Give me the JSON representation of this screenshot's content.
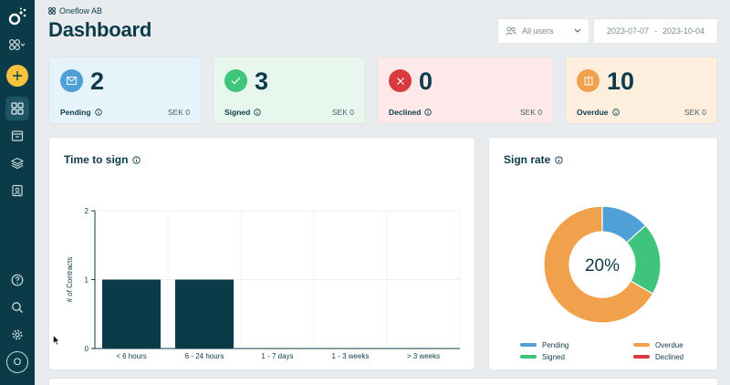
{
  "company": {
    "name": "Oneflow AB"
  },
  "page": {
    "title": "Dashboard"
  },
  "filters": {
    "users_value": "All users",
    "date_from": "2023-07-07",
    "date_sep": "-",
    "date_to": "2023-10-04"
  },
  "stats": [
    {
      "key": "pending",
      "value": "2",
      "label": "Pending",
      "amount": "SEK 0",
      "bg": "#e6f3fb",
      "icon_color": "#4ea0d6",
      "icon": "envelope-icon"
    },
    {
      "key": "signed",
      "value": "3",
      "label": "Signed",
      "amount": "SEK 0",
      "bg": "#e8f7ee",
      "icon_color": "#3fc47b",
      "icon": "check-icon"
    },
    {
      "key": "declined",
      "value": "0",
      "label": "Declined",
      "amount": "SEK 0",
      "bg": "#fde9e9",
      "icon_color": "#d93a3f",
      "icon": "x-icon"
    },
    {
      "key": "overdue",
      "value": "10",
      "label": "Overdue",
      "amount": "SEK 0",
      "bg": "#fdeedd",
      "icon_color": "#f1a04c",
      "icon": "box-icon"
    }
  ],
  "time_to_sign": {
    "title": "Time to sign"
  },
  "sign_rate": {
    "title": "Sign rate",
    "center_label": "20%"
  },
  "sidebar": {
    "avatar_initial": "O"
  },
  "chart_data": [
    {
      "type": "bar",
      "title": "Time to sign",
      "ylabel": "# of Contracts",
      "xlabel": "",
      "categories": [
        "< 6 hours",
        "6 - 24 hours",
        "1 - 7 days",
        "1 - 3 weeks",
        "> 3 weeks"
      ],
      "values": [
        1,
        1,
        0,
        0,
        0
      ],
      "ylim": [
        0,
        2
      ],
      "yticks": [
        "0",
        "1",
        "2"
      ],
      "grid": true,
      "bar_color": "#0b3b48"
    },
    {
      "type": "pie",
      "title": "Sign rate",
      "center_label": "20%",
      "legend_placement": "bottom",
      "slices": [
        {
          "name": "Pending",
          "value": 2,
          "color": "#4ea0d6"
        },
        {
          "name": "Signed",
          "value": 3,
          "color": "#3fc47b"
        },
        {
          "name": "Overdue",
          "value": 10,
          "color": "#f1a04c"
        },
        {
          "name": "Declined",
          "value": 0,
          "color": "#d93a3f"
        }
      ]
    }
  ]
}
